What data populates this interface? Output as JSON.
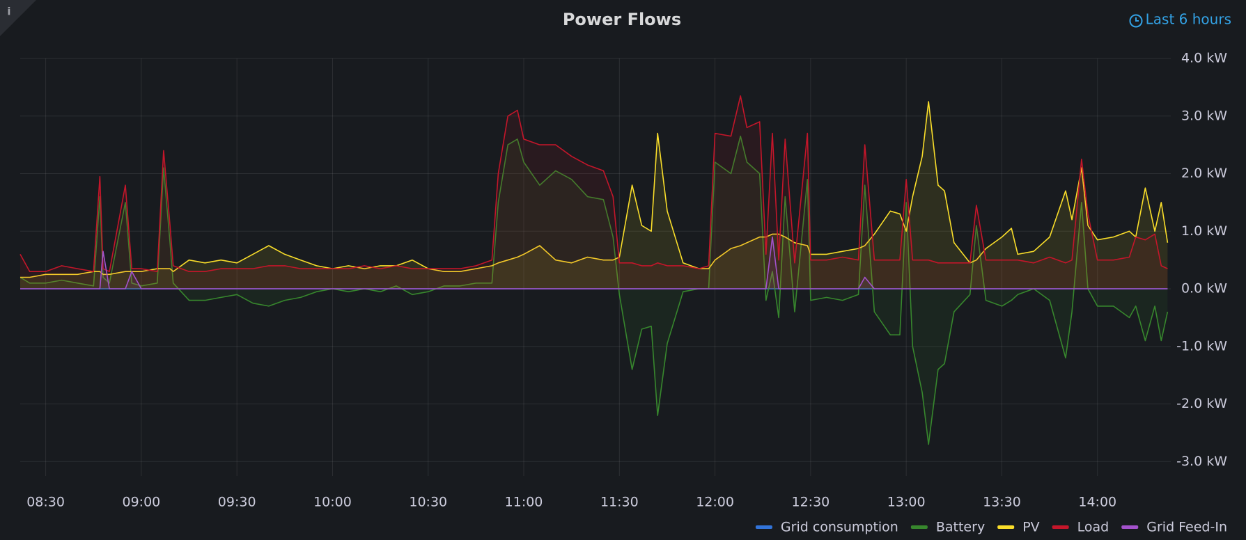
{
  "time_picker": "Last 6 hours",
  "chart_data": {
    "type": "area",
    "title": "Power Flows",
    "x": [
      "08:22",
      "08:25",
      "08:30",
      "08:35",
      "08:40",
      "08:45",
      "08:47",
      "08:48",
      "08:50",
      "08:55",
      "08:57",
      "09:00",
      "09:05",
      "09:07",
      "09:09",
      "09:10",
      "09:15",
      "09:20",
      "09:25",
      "09:30",
      "09:35",
      "09:40",
      "09:45",
      "09:50",
      "09:55",
      "10:00",
      "10:05",
      "10:10",
      "10:15",
      "10:20",
      "10:25",
      "10:30",
      "10:35",
      "10:40",
      "10:45",
      "10:50",
      "10:52",
      "10:55",
      "10:58",
      "11:00",
      "11:05",
      "11:10",
      "11:15",
      "11:20",
      "11:25",
      "11:28",
      "11:30",
      "11:34",
      "11:37",
      "11:40",
      "11:42",
      "11:45",
      "11:50",
      "11:55",
      "11:58",
      "12:00",
      "12:05",
      "12:08",
      "12:10",
      "12:14",
      "12:16",
      "12:18",
      "12:20",
      "12:22",
      "12:25",
      "12:29",
      "12:30",
      "12:35",
      "12:40",
      "12:45",
      "12:47",
      "12:50",
      "12:55",
      "12:58",
      "13:00",
      "13:02",
      "13:05",
      "13:07",
      "13:10",
      "13:12",
      "13:15",
      "13:20",
      "13:22",
      "13:25",
      "13:30",
      "13:33",
      "13:35",
      "13:40",
      "13:45",
      "13:50",
      "13:52",
      "13:55",
      "13:57",
      "14:00",
      "14:05",
      "14:10",
      "14:12",
      "14:15",
      "14:18",
      "14:20",
      "14:22"
    ],
    "series": [
      {
        "name": "Grid consumption",
        "color": "#3274d9",
        "values": [
          0,
          0,
          0,
          0,
          0,
          0,
          0,
          0,
          0,
          0,
          0,
          0,
          0,
          0,
          0,
          0,
          0,
          0,
          0,
          0,
          0,
          0,
          0,
          0,
          0,
          0,
          0,
          0,
          0,
          0,
          0,
          0,
          0,
          0,
          0,
          0,
          0,
          0,
          0,
          0,
          0,
          0,
          0,
          0,
          0,
          0,
          0,
          0,
          0,
          0,
          0,
          0,
          0,
          0,
          0,
          0,
          0,
          0,
          0,
          0,
          0,
          0,
          0,
          0,
          0,
          0,
          0,
          0,
          0,
          0,
          0,
          0,
          0,
          0,
          0,
          0,
          0,
          0,
          0,
          0,
          0,
          0,
          0,
          0,
          0,
          0,
          0,
          0,
          0,
          0,
          0,
          0,
          0,
          0,
          0,
          0,
          0,
          0,
          0,
          0,
          0
        ]
      },
      {
        "name": "Battery",
        "color": "#37872d",
        "values": [
          0.2,
          0.1,
          0.1,
          0.15,
          0.1,
          0.05,
          1.6,
          0.2,
          0.1,
          1.5,
          0.1,
          0.05,
          0.1,
          2.1,
          0.8,
          0.1,
          -0.2,
          -0.2,
          -0.15,
          -0.1,
          -0.25,
          -0.3,
          -0.2,
          -0.15,
          -0.05,
          0,
          -0.05,
          0,
          -0.05,
          0.05,
          -0.1,
          -0.05,
          0.05,
          0.05,
          0.1,
          0.1,
          1.5,
          2.5,
          2.6,
          2.2,
          1.8,
          2.05,
          1.9,
          1.6,
          1.55,
          0.9,
          -0.1,
          -1.4,
          -0.7,
          -0.65,
          -2.2,
          -0.95,
          -0.05,
          0,
          0,
          2.2,
          2.0,
          2.65,
          2.2,
          2.0,
          -0.2,
          0.3,
          -0.5,
          1.6,
          -0.4,
          1.9,
          -0.2,
          -0.15,
          -0.2,
          -0.1,
          1.8,
          -0.4,
          -0.8,
          -0.8,
          1.5,
          -1.0,
          -1.8,
          -2.7,
          -1.4,
          -1.3,
          -0.4,
          -0.1,
          1.1,
          -0.2,
          -0.3,
          -0.2,
          -0.1,
          0,
          -0.2,
          -1.2,
          -0.4,
          1.5,
          0,
          -0.3,
          -0.3,
          -0.5,
          -0.3,
          -0.9,
          -0.3,
          -0.9,
          -0.4
        ]
      },
      {
        "name": "PV",
        "color": "#fade2a",
        "values": [
          0.2,
          0.2,
          0.25,
          0.25,
          0.25,
          0.3,
          0.3,
          0.25,
          0.25,
          0.3,
          0.3,
          0.3,
          0.35,
          0.35,
          0.35,
          0.3,
          0.5,
          0.45,
          0.5,
          0.45,
          0.6,
          0.75,
          0.6,
          0.5,
          0.4,
          0.35,
          0.4,
          0.35,
          0.4,
          0.4,
          0.5,
          0.35,
          0.3,
          0.3,
          0.35,
          0.4,
          0.45,
          0.5,
          0.55,
          0.6,
          0.75,
          0.5,
          0.45,
          0.55,
          0.5,
          0.5,
          0.55,
          1.8,
          1.1,
          1.0,
          2.7,
          1.35,
          0.45,
          0.35,
          0.35,
          0.5,
          0.7,
          0.75,
          0.8,
          0.9,
          0.9,
          0.95,
          0.95,
          0.9,
          0.8,
          0.75,
          0.6,
          0.6,
          0.65,
          0.7,
          0.75,
          0.95,
          1.35,
          1.3,
          1.0,
          1.6,
          2.3,
          3.25,
          1.8,
          1.7,
          0.8,
          0.45,
          0.5,
          0.7,
          0.9,
          1.05,
          0.6,
          0.65,
          0.9,
          1.7,
          1.2,
          2.1,
          1.1,
          0.85,
          0.9,
          1.0,
          0.9,
          1.75,
          1.0,
          1.5,
          0.8
        ]
      },
      {
        "name": "Load",
        "color": "#c4162a",
        "values": [
          0.6,
          0.3,
          0.3,
          0.4,
          0.35,
          0.3,
          1.95,
          0.35,
          0.3,
          1.8,
          0.35,
          0.35,
          0.3,
          2.4,
          1.1,
          0.4,
          0.3,
          0.3,
          0.35,
          0.35,
          0.35,
          0.4,
          0.4,
          0.35,
          0.35,
          0.35,
          0.35,
          0.4,
          0.35,
          0.4,
          0.35,
          0.35,
          0.35,
          0.35,
          0.4,
          0.5,
          2.0,
          3.0,
          3.1,
          2.6,
          2.5,
          2.5,
          2.3,
          2.15,
          2.05,
          1.6,
          0.45,
          0.45,
          0.4,
          0.4,
          0.45,
          0.4,
          0.4,
          0.35,
          0.4,
          2.7,
          2.65,
          3.35,
          2.8,
          2.9,
          0.6,
          2.7,
          0.5,
          2.6,
          0.45,
          2.7,
          0.5,
          0.5,
          0.55,
          0.5,
          2.5,
          0.5,
          0.5,
          0.5,
          1.9,
          0.5,
          0.5,
          0.5,
          0.45,
          0.45,
          0.45,
          0.45,
          1.45,
          0.5,
          0.5,
          0.5,
          0.5,
          0.45,
          0.55,
          0.45,
          0.5,
          2.25,
          1.3,
          0.5,
          0.5,
          0.55,
          0.9,
          0.85,
          0.95,
          0.4,
          0.35
        ]
      },
      {
        "name": "Grid Feed-In",
        "color": "#a352cc",
        "values": [
          0,
          0,
          0,
          0,
          0,
          0,
          0,
          0.65,
          0,
          0,
          0.3,
          0,
          0,
          0,
          0,
          0,
          0,
          0,
          0,
          0,
          0,
          0,
          0,
          0,
          0,
          0,
          0,
          0,
          0,
          0,
          0,
          0,
          0,
          0,
          0,
          0,
          0,
          0,
          0,
          0,
          0,
          0,
          0,
          0,
          0,
          0,
          0,
          0,
          0,
          0,
          0,
          0,
          0,
          0,
          0,
          0,
          0,
          0,
          0,
          0,
          0,
          0.9,
          0,
          0,
          0,
          0,
          0,
          0,
          0,
          0,
          0.2,
          0,
          0,
          0,
          0,
          0,
          0,
          0,
          0,
          0,
          0,
          0,
          0,
          0,
          0,
          0,
          0,
          0,
          0,
          0,
          0,
          0,
          0,
          0,
          0,
          0,
          0,
          0,
          0,
          0,
          0
        ]
      }
    ],
    "xlim": [
      "08:22",
      "14:23"
    ],
    "xticks": [
      "08:30",
      "09:00",
      "09:30",
      "10:00",
      "10:30",
      "11:00",
      "11:30",
      "12:00",
      "12:30",
      "13:00",
      "13:30",
      "14:00"
    ],
    "ylim": [
      -3.25,
      4.0
    ],
    "yticks": [
      {
        "value": 4,
        "label": "4.0 kW"
      },
      {
        "value": 3,
        "label": "3.0 kW"
      },
      {
        "value": 2,
        "label": "2.0 kW"
      },
      {
        "value": 1,
        "label": "1.0 kW"
      },
      {
        "value": 0,
        "label": "0.0 kW"
      },
      {
        "value": -1,
        "label": "-1.0 kW"
      },
      {
        "value": -2,
        "label": "-2.0 kW"
      },
      {
        "value": -3,
        "label": "-3.0 kW"
      }
    ],
    "grid": true,
    "legend": "bottom-right"
  }
}
